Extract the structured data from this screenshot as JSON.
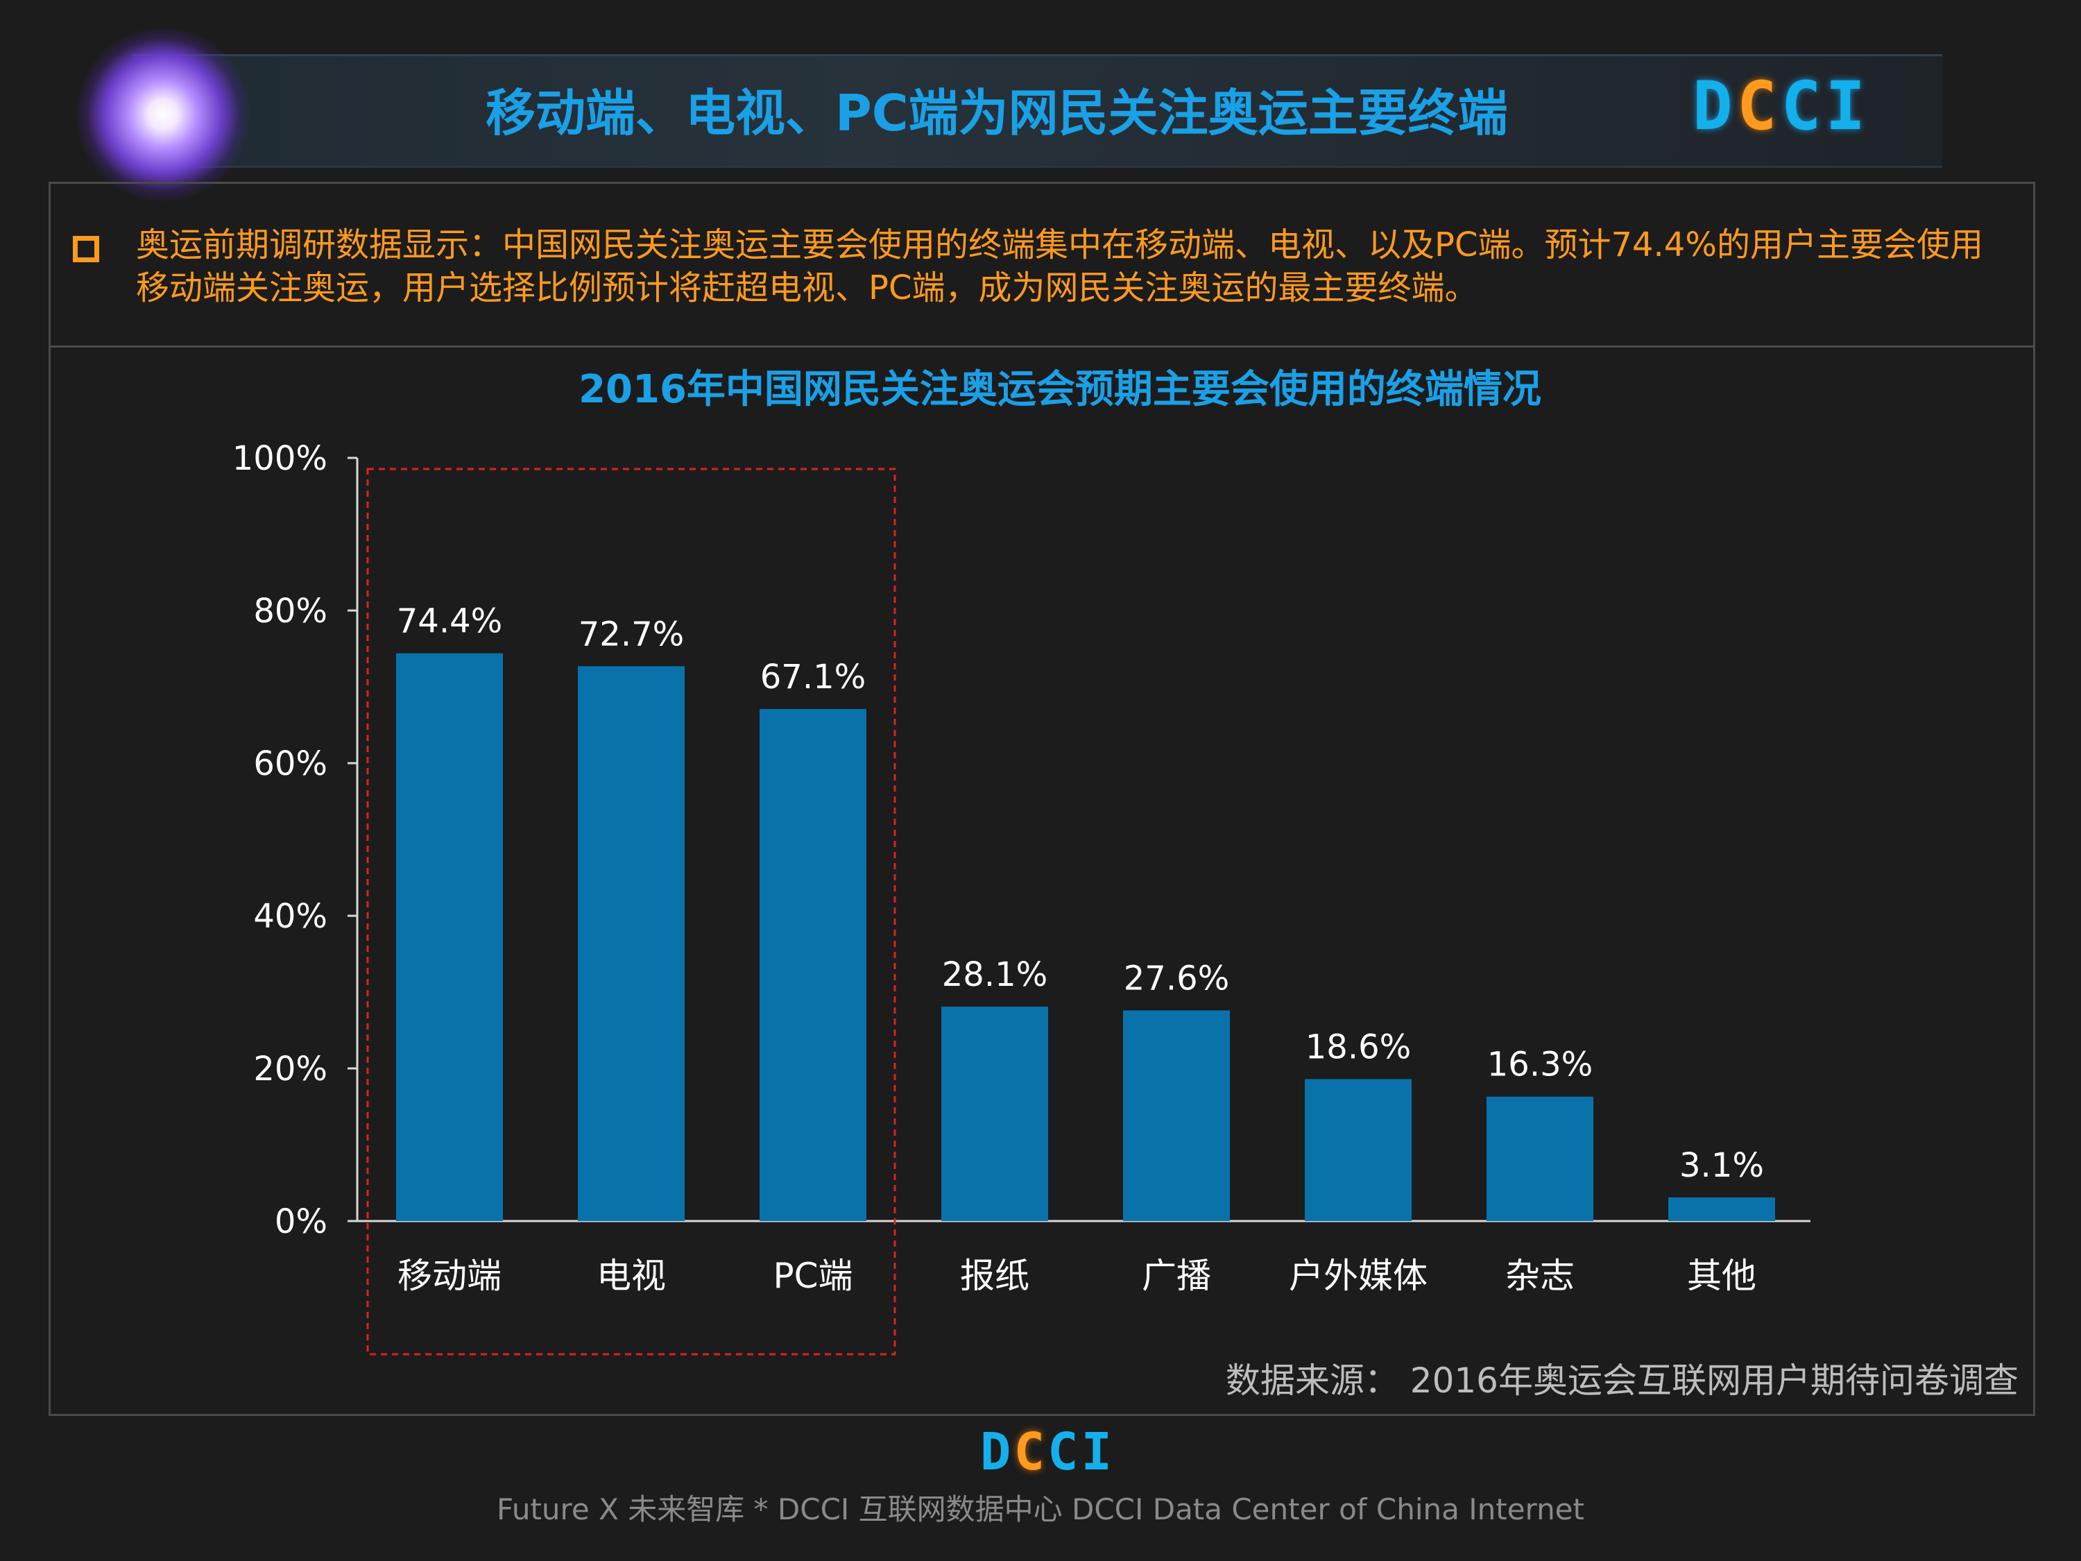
{
  "header": {
    "title": "移动端、电视、PC端为网民关注奥运主要终端",
    "logo": "DCCI",
    "accent_color": "#1aa0e6",
    "logo_accent_color": "#ff9a1e"
  },
  "summary": {
    "text": "奥运前期调研数据显示：中国网民关注奥运主要会使用的终端集中在移动端、电视、以及PC端。预计74.4%的用户主要会使用移动端关注奥运，用户选择比例预计将赶超电视、PC端，成为网民关注奥运的最主要终端。"
  },
  "chart_data": {
    "type": "bar",
    "title": "2016年中国网民关注奥运会预期主要会使用的终端情况",
    "categories": [
      "移动端",
      "电视",
      "PC端",
      "报纸",
      "广播",
      "户外媒体",
      "杂志",
      "其他"
    ],
    "values": [
      74.4,
      72.7,
      67.1,
      28.1,
      27.6,
      18.6,
      16.3,
      3.1
    ],
    "value_labels": [
      "74.4%",
      "72.7%",
      "67.1%",
      "28.1%",
      "27.6%",
      "18.6%",
      "16.3%",
      "3.1%"
    ],
    "yticks": [
      "0%",
      "20%",
      "40%",
      "60%",
      "80%",
      "100%"
    ],
    "ylim": [
      0,
      100
    ],
    "xlabel": "",
    "ylabel": "",
    "bar_color": "#0a72aa",
    "title_color": "#1aa0e6",
    "highlight": {
      "categories": [
        "移动端",
        "电视",
        "PC端"
      ],
      "color": "#e02020",
      "style": "dashed"
    },
    "grid": false,
    "legend": "none"
  },
  "source": "数据来源：  2016年奥运会互联网用户期待问卷调查",
  "footer": {
    "logo": "DCCI",
    "text": "Future X 未来智库 * DCCI 互联网数据中心 DCCI Data Center of China Internet"
  }
}
